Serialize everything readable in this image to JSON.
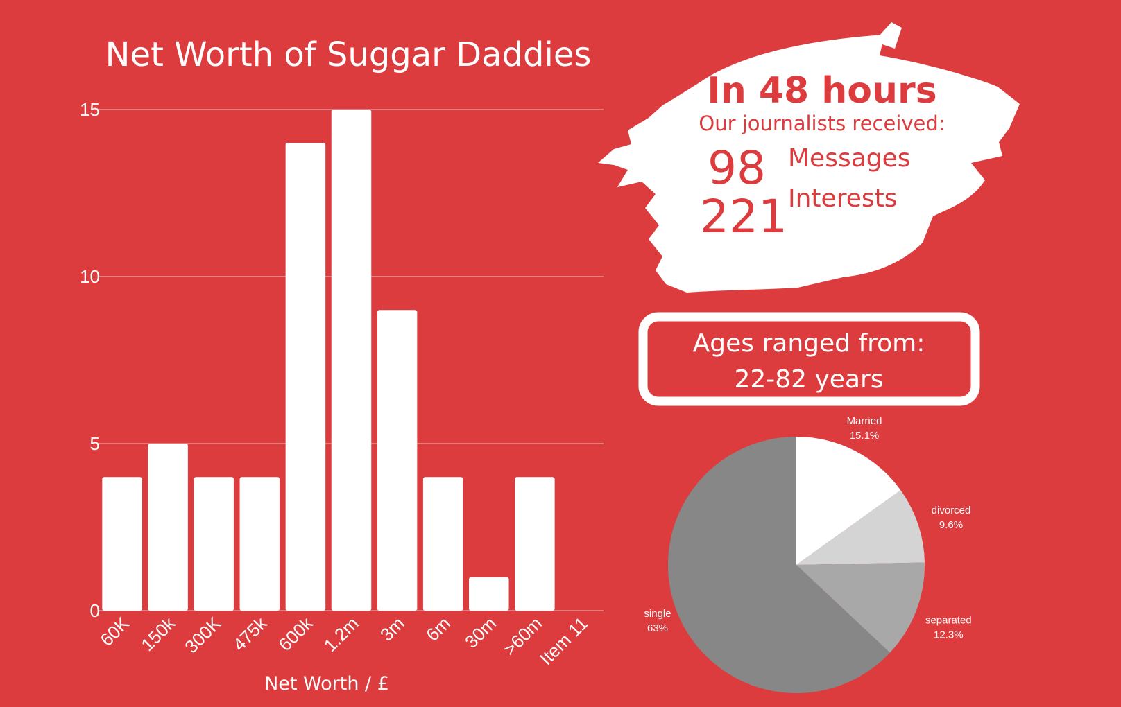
{
  "chart_data": [
    {
      "type": "bar",
      "title": "Net Worth of Suggar Daddies",
      "xlabel": "Net Worth / £",
      "ylabel": "",
      "categories": [
        "60K",
        "150k",
        "300K",
        "475k",
        "600k",
        "1.2m",
        "3m",
        "6m",
        "30m",
        ">60m",
        "Item 11"
      ],
      "values": [
        4,
        5,
        4,
        4,
        14,
        15,
        9,
        4,
        1,
        4,
        0
      ],
      "ylim": [
        0,
        15
      ],
      "yticks": [
        0,
        5,
        10,
        15
      ],
      "grid": true,
      "colors": {
        "bar": "#ffffff",
        "grid": "#ee8e8f",
        "background": "#dd3c3e"
      }
    },
    {
      "type": "pie",
      "slices": [
        {
          "label": "Married",
          "value": 15.1,
          "display": "15.1%",
          "color": "#ffffff"
        },
        {
          "label": "divorced",
          "value": 9.6,
          "display": "9.6%",
          "color": "#d4d4d4"
        },
        {
          "label": "separated",
          "value": 12.3,
          "display": "12.3%",
          "color": "#a8a8a8"
        },
        {
          "label": "single",
          "value": 63,
          "display": "63%",
          "color": "#878787"
        }
      ]
    }
  ],
  "stats": {
    "heading": "In 48 hours",
    "subheading": "Our journalists received:",
    "messages_count": "98",
    "messages_label": "Messages",
    "interests_count": "221",
    "interests_label": "Interests"
  },
  "ages": {
    "line1": "Ages ranged from:",
    "line2": "22-82 years"
  }
}
